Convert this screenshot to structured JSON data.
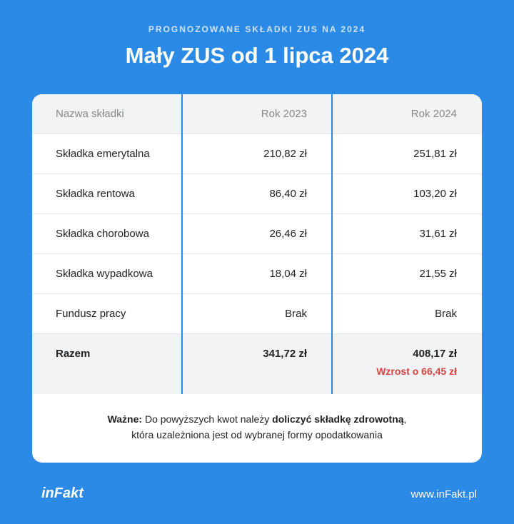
{
  "header": {
    "subtitle": "PROGNOZOWANE SKŁADKI ZUS NA 2024",
    "title": "Mały ZUS od 1 lipca 2024"
  },
  "table": {
    "columns": [
      "Nazwa składki",
      "Rok 2023",
      "Rok 2024"
    ],
    "rows": [
      [
        "Składka emerytalna",
        "210,82 zł",
        "251,81 zł"
      ],
      [
        "Składka rentowa",
        "86,40 zł",
        "103,20 zł"
      ],
      [
        "Składka chorobowa",
        "26,46 zł",
        "31,61 zł"
      ],
      [
        "Składka wypadkowa",
        "18,04 zł",
        "21,55 zł"
      ],
      [
        "Fundusz pracy",
        "Brak",
        "Brak"
      ]
    ],
    "total": {
      "label": "Razem",
      "values": [
        "341,72 zł",
        "408,17 zł"
      ],
      "change": "Wzrost o 66,45 zł"
    }
  },
  "note": [
    "Ważne:",
    "Do powyższych kwot należy",
    "doliczyć składkę zdrowotną",
    ",",
    "która uzależniona jest od wybranej formy opodatkowania"
  ],
  "footer": {
    "logo": "inFakt",
    "url": "www.inFakt.pl"
  }
}
